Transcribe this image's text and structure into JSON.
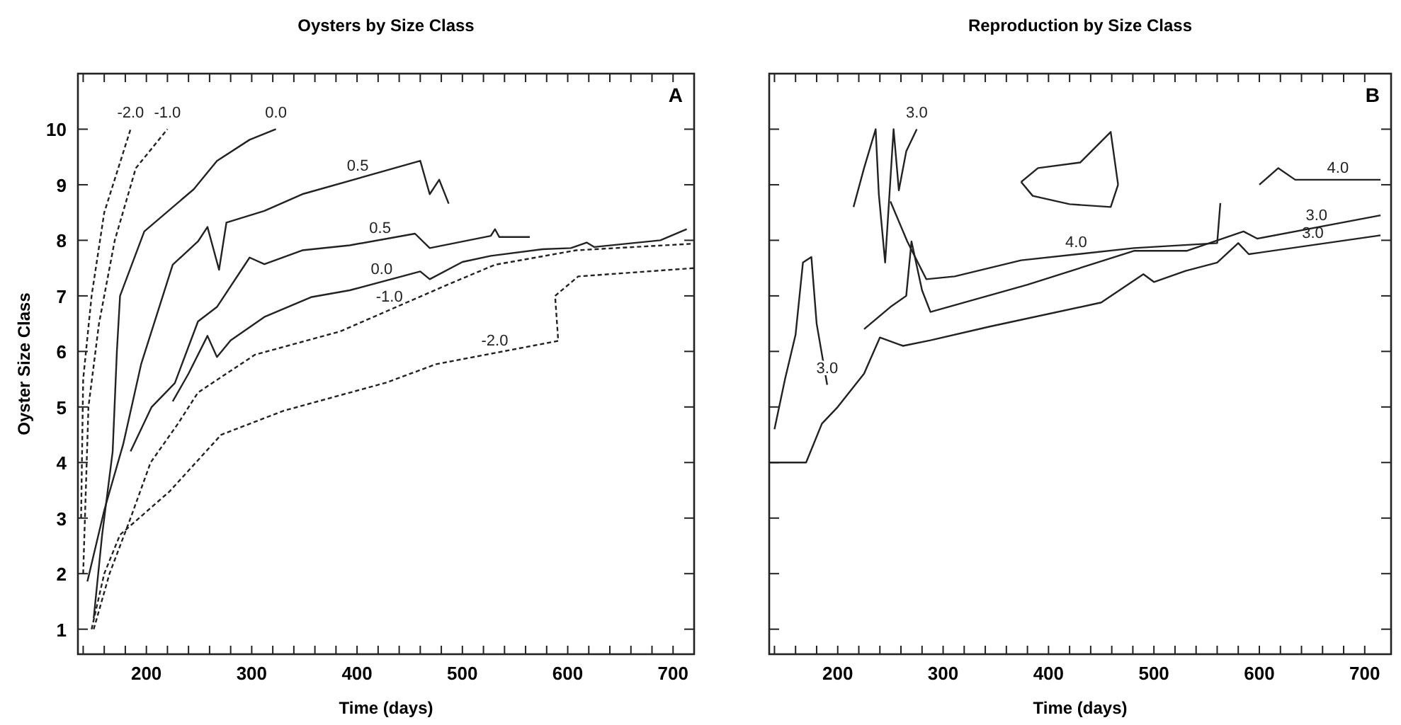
{
  "chart_data": [
    {
      "type": "line",
      "title": "Oysters by Size Class",
      "xlabel": "Time (days)",
      "ylabel": "Oyster Size Class",
      "annotations": [
        "A"
      ],
      "legend": false,
      "marker": "none",
      "xlim": [
        135,
        720
      ],
      "ylim": [
        0.55,
        11
      ],
      "xticks": [
        {
          "value": 140,
          "label": null
        },
        {
          "value": 160,
          "label": null
        },
        {
          "value": 180,
          "label": null
        },
        200,
        {
          "value": 220,
          "label": null
        },
        {
          "value": 240,
          "label": null
        },
        {
          "value": 260,
          "label": null
        },
        {
          "value": 280,
          "label": null
        },
        300,
        {
          "value": 320,
          "label": null
        },
        {
          "value": 340,
          "label": null
        },
        {
          "value": 360,
          "label": null
        },
        {
          "value": 380,
          "label": null
        },
        400,
        {
          "value": 420,
          "label": null
        },
        {
          "value": 440,
          "label": null
        },
        {
          "value": 460,
          "label": null
        },
        {
          "value": 480,
          "label": null
        },
        500,
        {
          "value": 520,
          "label": null
        },
        {
          "value": 540,
          "label": null
        },
        {
          "value": 560,
          "label": null
        },
        {
          "value": 580,
          "label": null
        },
        600,
        {
          "value": 620,
          "label": null
        },
        {
          "value": 640,
          "label": null
        },
        {
          "value": 660,
          "label": null
        },
        {
          "value": 680,
          "label": null
        },
        700
      ],
      "yticks": [
        1,
        2,
        3,
        4,
        5,
        6,
        7,
        8,
        9,
        10
      ],
      "series": [
        {
          "name": "0.0",
          "color": "#222222",
          "line_style": "solid",
          "x": [
            150,
            158,
            168,
            172,
            175,
            198,
            245,
            267,
            298,
            323
          ],
          "values": [
            1.2,
            2.7,
            4.2,
            6,
            7,
            8.16,
            8.92,
            9.43,
            9.81,
            10
          ]
        },
        {
          "name": "0.5",
          "color": "#222222",
          "line_style": "solid",
          "x": [
            144,
            160,
            178,
            195,
            225,
            249,
            258,
            269,
            276,
            312,
            348,
            460,
            469,
            478,
            487
          ],
          "values": [
            1.86,
            3.14,
            4.33,
            5.77,
            7.56,
            7.98,
            8.24,
            7.47,
            8.32,
            8.53,
            8.83,
            9.43,
            8.83,
            9.09,
            8.66
          ]
        },
        {
          "name": "0.5",
          "color": "#222222",
          "line_style": "solid",
          "x": [
            185,
            205,
            227,
            249,
            267,
            298,
            312,
            348,
            393,
            455,
            469,
            527,
            531,
            535,
            564
          ],
          "values": [
            4.2,
            5.0,
            5.43,
            6.54,
            6.8,
            7.69,
            7.57,
            7.82,
            7.91,
            8.12,
            7.86,
            8.08,
            8.2,
            8.06,
            8.06
          ]
        },
        {
          "name": "0.0",
          "color": "#222222",
          "line_style": "solid",
          "x": [
            225,
            240,
            258,
            267,
            280,
            312,
            357,
            393,
            460,
            469,
            500,
            527,
            576,
            603,
            618,
            625,
            688,
            713
          ],
          "values": [
            5.1,
            5.6,
            6.28,
            5.9,
            6.2,
            6.62,
            6.98,
            7.1,
            7.44,
            7.3,
            7.61,
            7.72,
            7.84,
            7.86,
            7.96,
            7.88,
            8.0,
            8.2
          ]
        },
        {
          "name": "-1.0",
          "color": "#222222",
          "line_style": "dashed",
          "x": [
            150,
            165,
            185,
            204,
            230,
            249,
            303,
            384,
            487,
            531,
            608,
            720
          ],
          "values": [
            1.0,
            2.0,
            3.0,
            4.0,
            4.7,
            5.26,
            5.94,
            6.36,
            7.21,
            7.56,
            7.82,
            7.94
          ]
        },
        {
          "name": "-2.0",
          "color": "#222222",
          "line_style": "dashed",
          "x": [
            148,
            160,
            175,
            222,
            271,
            330,
            428,
            475,
            591,
            588,
            610,
            720
          ],
          "values": [
            1.0,
            2.0,
            2.7,
            3.48,
            4.5,
            4.93,
            5.44,
            5.77,
            6.19,
            7.0,
            7.35,
            7.5
          ]
        },
        {
          "name": "-1.0",
          "color": "#222222",
          "line_style": "dashed",
          "x": [
            140,
            145,
            155,
            170,
            190,
            220
          ],
          "values": [
            2.0,
            5.0,
            6.5,
            8.0,
            9.3,
            10
          ]
        },
        {
          "name": "-2.0",
          "color": "#222222",
          "line_style": "dashed",
          "x": [
            138,
            140,
            148,
            160,
            185
          ],
          "values": [
            3,
            5.5,
            7,
            8.5,
            10
          ]
        }
      ]
    },
    {
      "type": "line",
      "title": "Reproduction by Size Class",
      "xlabel": "Time (days)",
      "annotations": [
        "B"
      ],
      "legend": false,
      "marker": "none",
      "tick_labels": "x",
      "xlim": [
        135,
        725
      ],
      "ylim": [
        0.55,
        11
      ],
      "xticks": [
        {
          "value": 140,
          "label": null
        },
        {
          "value": 160,
          "label": null
        },
        {
          "value": 180,
          "label": null
        },
        200,
        {
          "value": 220,
          "label": null
        },
        {
          "value": 240,
          "label": null
        },
        {
          "value": 260,
          "label": null
        },
        {
          "value": 280,
          "label": null
        },
        300,
        {
          "value": 320,
          "label": null
        },
        {
          "value": 340,
          "label": null
        },
        {
          "value": 360,
          "label": null
        },
        {
          "value": 380,
          "label": null
        },
        400,
        {
          "value": 420,
          "label": null
        },
        {
          "value": 440,
          "label": null
        },
        {
          "value": 460,
          "label": null
        },
        {
          "value": 480,
          "label": null
        },
        500,
        {
          "value": 520,
          "label": null
        },
        {
          "value": 540,
          "label": null
        },
        {
          "value": 560,
          "label": null
        },
        {
          "value": 580,
          "label": null
        },
        600,
        {
          "value": 620,
          "label": null
        },
        {
          "value": 640,
          "label": null
        },
        {
          "value": 660,
          "label": null
        },
        {
          "value": 680,
          "label": null
        },
        700
      ],
      "yticks": [
        1,
        2,
        3,
        4,
        5,
        6,
        7,
        8,
        9,
        10
      ],
      "series": [
        {
          "name": "3.0",
          "color": "#222222",
          "line_style": "solid",
          "x": [
            135,
            170,
            185,
            200,
            225,
            240,
            262,
            288,
            345,
            450,
            490,
            500,
            530,
            560,
            580,
            590,
            715
          ],
          "values": [
            4.0,
            4.0,
            4.7,
            5.0,
            5.6,
            6.25,
            6.1,
            6.2,
            6.45,
            6.88,
            7.39,
            7.25,
            7.45,
            7.6,
            7.95,
            7.75,
            8.09
          ]
        },
        {
          "name": "3.0",
          "color": "#222222",
          "line_style": "solid",
          "x": [
            225,
            250,
            265,
            270,
            280,
            288,
            380,
            481,
            531,
            585,
            598,
            715
          ],
          "values": [
            6.4,
            6.8,
            7.0,
            7.98,
            7.1,
            6.71,
            7.2,
            7.81,
            7.81,
            8.16,
            8.03,
            8.45
          ]
        },
        {
          "name": "4.0",
          "color": "#222222",
          "line_style": "solid",
          "x": [
            250,
            266,
            284,
            311,
            374,
            481,
            560,
            563
          ],
          "values": [
            8.7,
            7.98,
            7.3,
            7.35,
            7.64,
            7.86,
            7.95,
            8.67
          ]
        },
        {
          "name": "4.0",
          "color": "#222222",
          "line_style": "solid",
          "x": [
            600,
            618,
            634,
            715
          ],
          "values": [
            9.0,
            9.3,
            9.09,
            9.09
          ]
        },
        {
          "color": "#222222",
          "line_style": "solid",
          "x": [
            374,
            390,
            430,
            459,
            466
          ],
          "values": [
            9.05,
            9.3,
            9.4,
            9.95,
            9.0
          ]
        },
        {
          "color": "#222222",
          "line_style": "solid",
          "x": [
            374,
            385,
            420,
            459,
            466
          ],
          "values": [
            9.05,
            8.8,
            8.65,
            8.6,
            9.0
          ]
        },
        {
          "name": "3.0",
          "color": "#222222",
          "line_style": "solid",
          "x": [
            215,
            225,
            236,
            239,
            245,
            253,
            258,
            265,
            275
          ],
          "values": [
            8.6,
            9.3,
            10,
            8.83,
            7.6,
            10,
            8.9,
            9.6,
            10
          ]
        },
        {
          "name": "3.0",
          "color": "#222222",
          "line_style": "solid",
          "x": [
            140,
            150,
            160,
            167,
            175,
            180,
            190
          ],
          "values": [
            4.6,
            5.5,
            6.3,
            7.6,
            7.7,
            6.5,
            5.4
          ]
        }
      ]
    }
  ]
}
